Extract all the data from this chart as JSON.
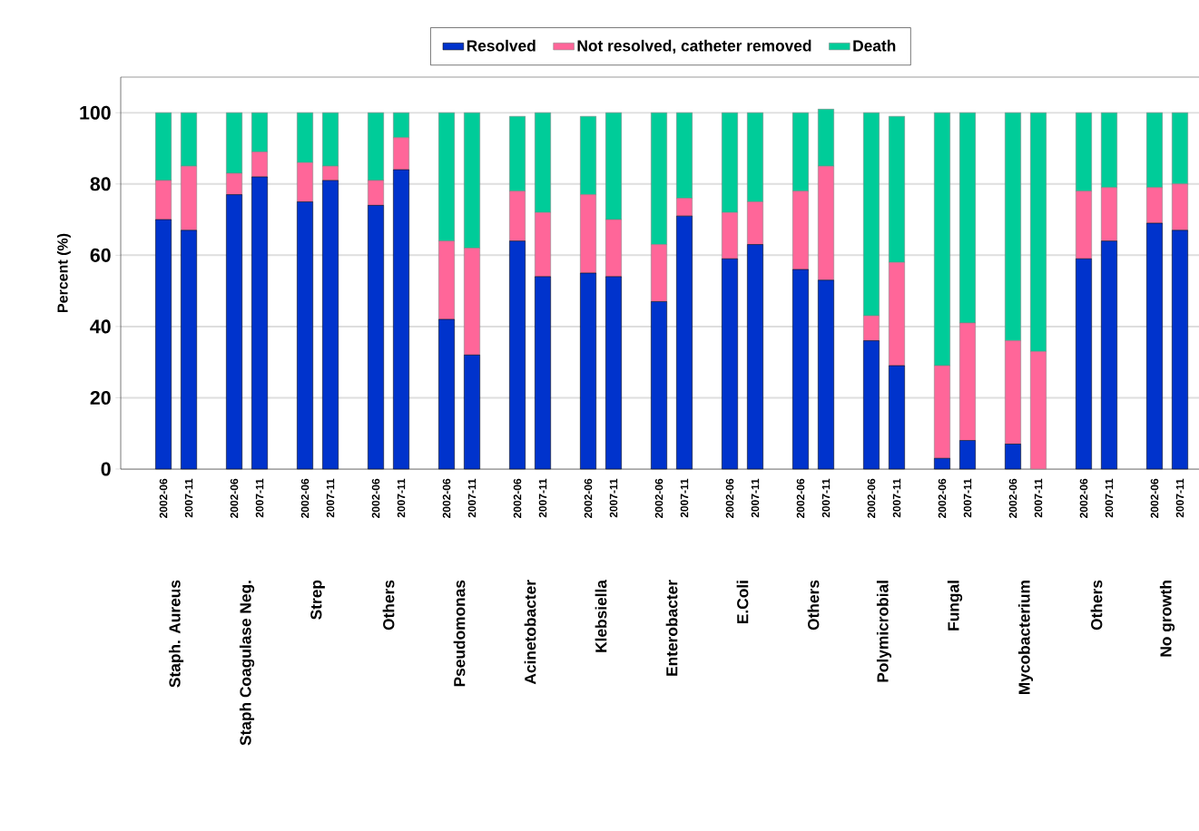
{
  "chart_data": {
    "type": "bar",
    "stacked": true,
    "ylabel": "Percent (%)",
    "categories": [
      "2002-06",
      "2007-11",
      "2002-06",
      "2007-11",
      "2002-06",
      "2007-11",
      "2002-06",
      "2007-11",
      "2002-06",
      "2007-11",
      "2002-06",
      "2007-11",
      "2002-06",
      "2007-11",
      "2002-06",
      "2007-11",
      "2002-06",
      "2007-11",
      "2002-06",
      "2007-11",
      "2002-06",
      "2007-11",
      "2002-06",
      "2007-11",
      "2002-06",
      "2007-11",
      "2002-06",
      "2007-11",
      "2002-06",
      "2007-11"
    ],
    "series": [
      {
        "name": "Resolved",
        "color": "#0033cc",
        "values": [
          70,
          67,
          77,
          82,
          75,
          81,
          74,
          84,
          42,
          32,
          64,
          54,
          55,
          54,
          47,
          71,
          59,
          63,
          56,
          53,
          36,
          29,
          3,
          8,
          7,
          0,
          59,
          64,
          69,
          67
        ]
      },
      {
        "name": "Not resolved, catheter removed",
        "color": "#ff6699",
        "values": [
          11,
          18,
          6,
          7,
          11,
          4,
          7,
          9,
          22,
          30,
          14,
          18,
          22,
          16,
          16,
          5,
          13,
          12,
          22,
          32,
          7,
          29,
          26,
          33,
          29,
          33,
          19,
          15,
          10,
          13
        ]
      },
      {
        "name": "Death",
        "color": "#00cc99",
        "values": [
          19,
          15,
          17,
          11,
          14,
          15,
          19,
          7,
          36,
          38,
          21,
          28,
          22,
          30,
          37,
          24,
          28,
          25,
          22,
          16,
          57,
          41,
          71,
          59,
          64,
          67,
          22,
          21,
          21,
          20
        ]
      }
    ],
    "annotations": [
      "Staph. Aureus",
      "Staph Coagulase Neg.",
      "Strep",
      "Others",
      "Pseudomonas",
      "Acinetobacter",
      "Klebsiella",
      "Enterobacter",
      "E.Coli",
      "Others",
      "Polymicrobial",
      "Fungal",
      "Mycobacterium",
      "Others",
      "No growth"
    ],
    "ylim": [
      0,
      110
    ],
    "yticks": [
      0,
      20,
      40,
      60,
      80,
      100
    ],
    "grid": "y",
    "legend": "top"
  }
}
